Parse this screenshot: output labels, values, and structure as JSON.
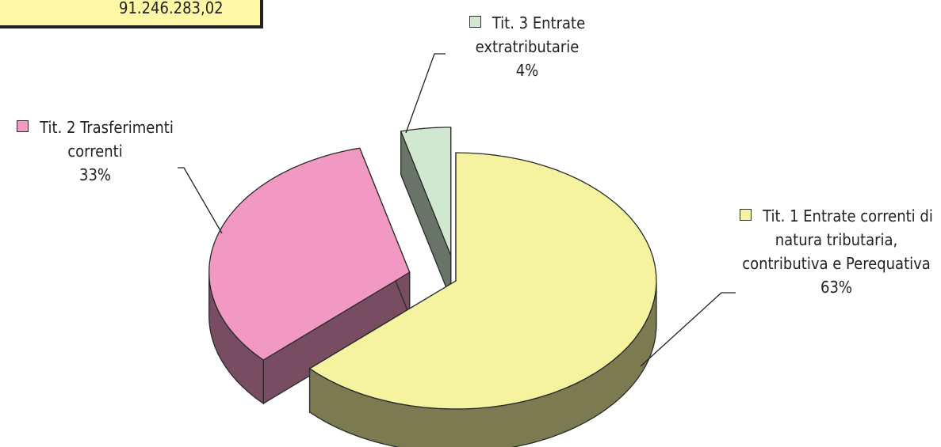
{
  "total_box": "91.246.283,02",
  "chart_data": {
    "type": "pie",
    "categories": [
      "Tit. 1 Entrate correnti di natura tributaria, contributiva e Perequativa",
      "Tit. 2 Trasferimenti correnti",
      "Tit. 3 Entrate extratributarie"
    ],
    "values": [
      63,
      33,
      4
    ],
    "value_labels": [
      "63%",
      "33%",
      "4%"
    ],
    "colors": [
      "#f5f3a0",
      "#f199c2",
      "#cfe8cf"
    ]
  }
}
